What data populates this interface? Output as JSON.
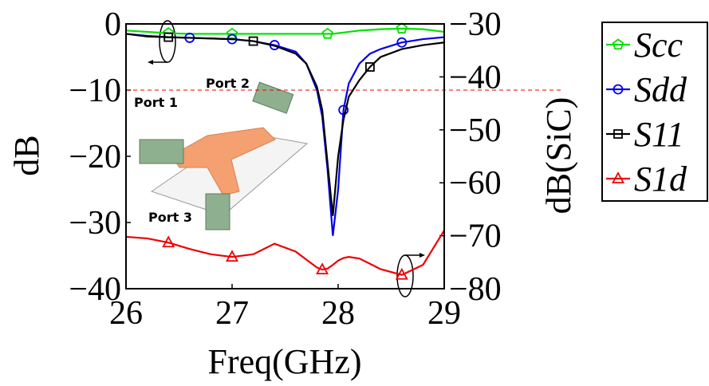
{
  "chart_data": {
    "type": "line",
    "x": [
      26,
      26.2,
      26.4,
      26.6,
      26.8,
      27,
      27.2,
      27.4,
      27.6,
      27.7,
      27.8,
      27.85,
      27.9,
      27.95,
      28,
      28.05,
      28.1,
      28.2,
      28.3,
      28.4,
      28.6,
      28.8,
      29
    ],
    "series": [
      {
        "name": "Scc",
        "color": "#00e000",
        "marker": "pentagon",
        "values": [
          -1.0,
          -1.2,
          -1.4,
          -1.5,
          -1.5,
          -1.5,
          -1.5,
          -1.5,
          -1.5,
          -1.5,
          -1.5,
          -1.5,
          -1.5,
          -1.5,
          -1.4,
          -1.3,
          -1.2,
          -1.0,
          -0.9,
          -0.8,
          -0.7,
          -0.8,
          -1.2
        ]
      },
      {
        "name": "Sdd",
        "color": "#0000ee",
        "marker": "circle",
        "values": [
          -1.5,
          -1.8,
          -2.0,
          -2.1,
          -2.2,
          -2.3,
          -2.6,
          -3.2,
          -4.2,
          -6,
          -10,
          -14,
          -22,
          -32,
          -25,
          -13,
          -9,
          -6,
          -4.5,
          -3.8,
          -2.8,
          -2.3,
          -2.0
        ]
      },
      {
        "name": "S11",
        "color": "#000000",
        "marker": "square",
        "values": [
          -1.5,
          -1.9,
          -2.0,
          -2.1,
          -2.2,
          -2.3,
          -2.6,
          -3.3,
          -4.5,
          -6,
          -9.5,
          -13,
          -21,
          -29,
          -20,
          -14.5,
          -11,
          -8.5,
          -6.5,
          -5,
          -3.8,
          -3.2,
          -2.8
        ]
      },
      {
        "name": "S1d",
        "color": "#ee0000",
        "marker": "triangle",
        "axis": "y2",
        "values": [
          -70.2,
          -70.5,
          -71.3,
          -72.5,
          -73.5,
          -74,
          -73.5,
          -71.5,
          -73,
          -74.5,
          -76,
          -76.4,
          -76.2,
          -75.5,
          -74.7,
          -74.2,
          -74,
          -74.3,
          -75.3,
          -76.3,
          -77.4,
          -75.5,
          -69
        ]
      }
    ],
    "xlim": [
      26,
      29
    ],
    "xticks": [
      26,
      27,
      28,
      29
    ],
    "ylim": [
      -40,
      0
    ],
    "yticks": [
      {
        "value": 0,
        "label": "0"
      },
      {
        "value": -10,
        "label": "−10"
      },
      {
        "value": -20,
        "label": "−20"
      },
      {
        "value": -30,
        "label": "−30"
      },
      {
        "value": -40,
        "label": "−40"
      }
    ],
    "y2lim": [
      -80,
      -30
    ],
    "y2ticks": [
      {
        "value": -30,
        "label": "−30"
      },
      {
        "value": -40,
        "label": "−40"
      },
      {
        "value": -50,
        "label": "−50"
      },
      {
        "value": -60,
        "label": "−60"
      },
      {
        "value": -70,
        "label": "−70"
      },
      {
        "value": -80,
        "label": "−80"
      }
    ],
    "xlabel": "Freq(GHz)",
    "ylabel": "dB",
    "y2label": "dB(SiC)",
    "reference_line": {
      "value": -10,
      "color": "#ee0000"
    },
    "annotations": [
      "Port 1",
      "Port 2",
      "Port 3"
    ],
    "legend": "outside-right"
  }
}
